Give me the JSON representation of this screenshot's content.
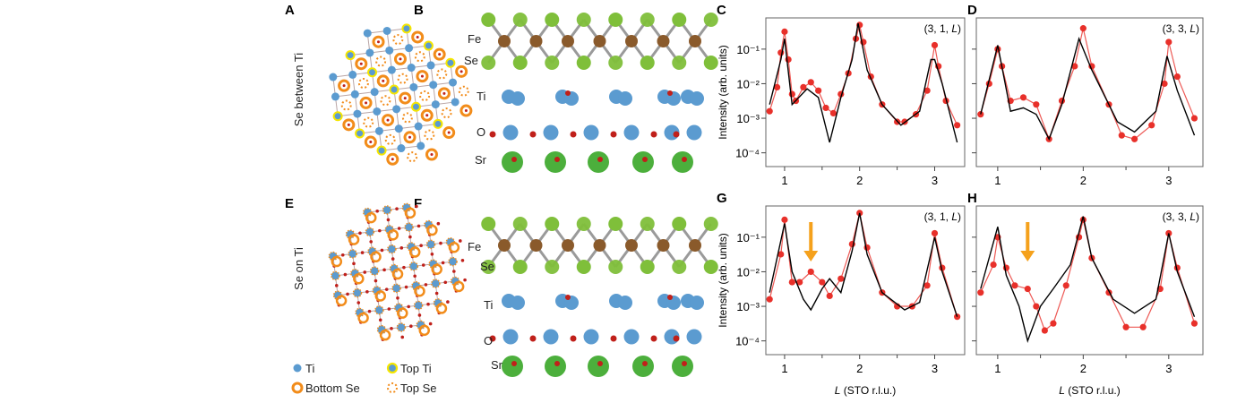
{
  "panels": {
    "A": {
      "letter": "A",
      "side_label": "Se between Ti"
    },
    "B": {
      "letter": "B",
      "atoms": {
        "fe": "Fe",
        "se": "Se",
        "ti": "Ti",
        "o": "O",
        "sr": "Sr"
      }
    },
    "E": {
      "letter": "E",
      "side_label": "Se on Ti"
    },
    "F": {
      "letter": "F",
      "atoms": {
        "fe": "Fe",
        "se": "Se",
        "ti": "Ti",
        "o": "O",
        "sr": "Sr"
      }
    }
  },
  "legend": {
    "items": [
      {
        "label": "Ti",
        "icon": "ti-atom-icon"
      },
      {
        "label": "Top Ti",
        "icon": "top-ti-atom-icon"
      },
      {
        "label": "Bottom Se",
        "icon": "bottom-se-ring-icon"
      },
      {
        "label": "Top Se",
        "icon": "top-se-dotted-ring-icon"
      }
    ]
  },
  "colors": {
    "ti": "#5b9bd0",
    "top_ti_ring": "#f5e600",
    "se_orange": "#f28c1a",
    "fe": "#8a5a2b",
    "se_green": "#7fbf3a",
    "sr": "#4caf3c",
    "o": "#c0201a",
    "data": "#e8302a",
    "fit": "#000000",
    "arrow": "#f5a11c"
  },
  "chart_data": [
    {
      "letter": "C",
      "type": "scatter",
      "hkl_prefix": "(3, 1, ",
      "hkl_var": "L",
      "hkl_suffix": ")",
      "ylabel": "Intensity (arb. units)",
      "xlabel": "",
      "yscale": "log",
      "ylim": [
        4e-05,
        0.8
      ],
      "xlim": [
        0.75,
        3.4
      ],
      "yticks": [
        {
          "v": 0.1,
          "label": "10⁻¹"
        },
        {
          "v": 0.01,
          "label": "10⁻²"
        },
        {
          "v": 0.001,
          "label": "10⁻³"
        },
        {
          "v": 0.0001,
          "label": "10⁻⁴"
        }
      ],
      "xticks": [
        1,
        2,
        3
      ],
      "minor_xticks": [
        1.5,
        2.5
      ],
      "series": [
        {
          "kind": "data",
          "points": [
            [
              0.8,
              0.0016
            ],
            [
              0.9,
              0.0079
            ],
            [
              0.95,
              0.079
            ],
            [
              1.0,
              0.32
            ],
            [
              1.05,
              0.05
            ],
            [
              1.1,
              0.005
            ],
            [
              1.15,
              0.0032
            ],
            [
              1.25,
              0.0079
            ],
            [
              1.35,
              0.011
            ],
            [
              1.45,
              0.0063
            ],
            [
              1.55,
              0.002
            ],
            [
              1.65,
              0.0014
            ],
            [
              1.75,
              0.005
            ],
            [
              1.85,
              0.02
            ],
            [
              1.95,
              0.2
            ],
            [
              2.0,
              0.5
            ],
            [
              2.05,
              0.16
            ],
            [
              2.15,
              0.016
            ],
            [
              2.3,
              0.0025
            ],
            [
              2.5,
              0.00079
            ],
            [
              2.6,
              0.00079
            ],
            [
              2.75,
              0.0013
            ],
            [
              2.9,
              0.0063
            ],
            [
              3.0,
              0.13
            ],
            [
              3.05,
              0.032
            ],
            [
              3.15,
              0.0032
            ],
            [
              3.3,
              0.00063
            ]
          ]
        },
        {
          "kind": "fit",
          "points": [
            [
              0.8,
              0.0025
            ],
            [
              0.95,
              0.05
            ],
            [
              1.0,
              0.2
            ],
            [
              1.1,
              0.0025
            ],
            [
              1.3,
              0.0071
            ],
            [
              1.45,
              0.004
            ],
            [
              1.6,
              0.0002
            ],
            [
              1.75,
              0.004
            ],
            [
              1.9,
              0.05
            ],
            [
              1.98,
              0.56
            ],
            [
              2.1,
              0.025
            ],
            [
              2.3,
              0.0025
            ],
            [
              2.55,
              0.00063
            ],
            [
              2.8,
              0.0016
            ],
            [
              2.95,
              0.05
            ],
            [
              3.0,
              0.05
            ],
            [
              3.1,
              0.01
            ],
            [
              3.3,
              0.0002
            ]
          ]
        }
      ],
      "annotations": []
    },
    {
      "letter": "D",
      "type": "scatter",
      "hkl_prefix": "(3, 3, ",
      "hkl_var": "L",
      "hkl_suffix": ")",
      "ylabel": "",
      "xlabel": "",
      "yscale": "log",
      "ylim": [
        4e-05,
        0.8
      ],
      "xlim": [
        0.75,
        3.4
      ],
      "yticks": [
        {
          "v": 0.1,
          "label": ""
        },
        {
          "v": 0.01,
          "label": ""
        },
        {
          "v": 0.001,
          "label": ""
        },
        {
          "v": 0.0001,
          "label": ""
        }
      ],
      "xticks": [
        1,
        2,
        3
      ],
      "minor_xticks": [
        1.5,
        2.5
      ],
      "series": [
        {
          "kind": "data",
          "points": [
            [
              0.8,
              0.0013
            ],
            [
              0.9,
              0.01
            ],
            [
              1.0,
              0.1
            ],
            [
              1.05,
              0.032
            ],
            [
              1.15,
              0.0032
            ],
            [
              1.3,
              0.004
            ],
            [
              1.45,
              0.0025
            ],
            [
              1.6,
              0.00025
            ],
            [
              1.75,
              0.0032
            ],
            [
              1.9,
              0.032
            ],
            [
              2.0,
              0.4
            ],
            [
              2.1,
              0.032
            ],
            [
              2.3,
              0.0025
            ],
            [
              2.45,
              0.00032
            ],
            [
              2.6,
              0.00025
            ],
            [
              2.8,
              0.00063
            ],
            [
              2.95,
              0.01
            ],
            [
              3.0,
              0.16
            ],
            [
              3.1,
              0.016
            ],
            [
              3.3,
              0.001
            ]
          ]
        },
        {
          "kind": "fit",
          "points": [
            [
              0.8,
              0.0013
            ],
            [
              1.0,
              0.13
            ],
            [
              1.15,
              0.0016
            ],
            [
              1.3,
              0.002
            ],
            [
              1.45,
              0.0013
            ],
            [
              1.6,
              0.00025
            ],
            [
              1.75,
              0.0025
            ],
            [
              1.95,
              0.2
            ],
            [
              2.1,
              0.025
            ],
            [
              2.4,
              0.00079
            ],
            [
              2.6,
              0.0004
            ],
            [
              2.85,
              0.0016
            ],
            [
              2.98,
              0.063
            ],
            [
              3.1,
              0.0063
            ],
            [
              3.3,
              0.00032
            ]
          ]
        }
      ],
      "annotations": []
    },
    {
      "letter": "G",
      "type": "scatter",
      "hkl_prefix": "(3, 1, ",
      "hkl_var": "L",
      "hkl_suffix": ")",
      "ylabel": "Intensity (arb. units)",
      "xlabel_var": "L",
      "xlabel": " (STO r.l.u.)",
      "yscale": "log",
      "ylim": [
        4e-05,
        0.8
      ],
      "xlim": [
        0.75,
        3.4
      ],
      "yticks": [
        {
          "v": 0.1,
          "label": "10⁻¹"
        },
        {
          "v": 0.01,
          "label": "10⁻²"
        },
        {
          "v": 0.001,
          "label": "10⁻³"
        },
        {
          "v": 0.0001,
          "label": "10⁻⁴"
        }
      ],
      "xticks": [
        1,
        2,
        3
      ],
      "minor_xticks": [
        1.5,
        2.5
      ],
      "series": [
        {
          "kind": "data",
          "points": [
            [
              0.8,
              0.0016
            ],
            [
              0.95,
              0.032
            ],
            [
              1.0,
              0.32
            ],
            [
              1.1,
              0.005
            ],
            [
              1.2,
              0.005
            ],
            [
              1.35,
              0.01
            ],
            [
              1.5,
              0.005
            ],
            [
              1.6,
              0.002
            ],
            [
              1.75,
              0.0063
            ],
            [
              1.9,
              0.063
            ],
            [
              2.0,
              0.5
            ],
            [
              2.1,
              0.05
            ],
            [
              2.3,
              0.0025
            ],
            [
              2.5,
              0.001
            ],
            [
              2.7,
              0.001
            ],
            [
              2.9,
              0.004
            ],
            [
              3.0,
              0.13
            ],
            [
              3.1,
              0.013
            ],
            [
              3.3,
              0.0005
            ]
          ]
        },
        {
          "kind": "fit",
          "points": [
            [
              0.8,
              0.0025
            ],
            [
              1.0,
              0.25
            ],
            [
              1.1,
              0.01
            ],
            [
              1.25,
              0.0016
            ],
            [
              1.35,
              0.00079
            ],
            [
              1.5,
              0.0032
            ],
            [
              1.6,
              0.0063
            ],
            [
              1.75,
              0.0025
            ],
            [
              1.9,
              0.04
            ],
            [
              2.0,
              0.5
            ],
            [
              2.1,
              0.032
            ],
            [
              2.3,
              0.0025
            ],
            [
              2.6,
              0.00079
            ],
            [
              2.8,
              0.0013
            ],
            [
              3.0,
              0.1
            ],
            [
              3.1,
              0.01
            ],
            [
              3.3,
              0.0005
            ]
          ]
        }
      ],
      "annotations": [
        {
          "type": "arrow",
          "x": 1.35,
          "pointing": "down"
        }
      ]
    },
    {
      "letter": "H",
      "type": "scatter",
      "hkl_prefix": "(3, 3, ",
      "hkl_var": "L",
      "hkl_suffix": ")",
      "ylabel": "",
      "xlabel_var": "L",
      "xlabel": " (STO r.l.u.)",
      "yscale": "log",
      "ylim": [
        4e-05,
        0.8
      ],
      "xlim": [
        0.75,
        3.4
      ],
      "yticks": [
        {
          "v": 0.1,
          "label": ""
        },
        {
          "v": 0.01,
          "label": ""
        },
        {
          "v": 0.001,
          "label": ""
        },
        {
          "v": 0.0001,
          "label": ""
        }
      ],
      "xticks": [
        1,
        2,
        3
      ],
      "minor_xticks": [
        1.5,
        2.5
      ],
      "series": [
        {
          "kind": "data",
          "points": [
            [
              0.8,
              0.0025
            ],
            [
              0.95,
              0.016
            ],
            [
              1.0,
              0.1
            ],
            [
              1.1,
              0.013
            ],
            [
              1.2,
              0.004
            ],
            [
              1.35,
              0.0032
            ],
            [
              1.45,
              0.001
            ],
            [
              1.55,
              0.0002
            ],
            [
              1.65,
              0.00032
            ],
            [
              1.8,
              0.004
            ],
            [
              1.95,
              0.1
            ],
            [
              2.0,
              0.32
            ],
            [
              2.1,
              0.025
            ],
            [
              2.3,
              0.0025
            ],
            [
              2.5,
              0.00025
            ],
            [
              2.7,
              0.00025
            ],
            [
              2.9,
              0.0032
            ],
            [
              3.0,
              0.13
            ],
            [
              3.1,
              0.013
            ],
            [
              3.3,
              0.00032
            ]
          ]
        },
        {
          "kind": "fit",
          "points": [
            [
              0.8,
              0.0032
            ],
            [
              1.0,
              0.2
            ],
            [
              1.1,
              0.0079
            ],
            [
              1.25,
              0.001
            ],
            [
              1.35,
              0.0001
            ],
            [
              1.5,
              0.001
            ],
            [
              1.65,
              0.0032
            ],
            [
              1.85,
              0.016
            ],
            [
              2.0,
              0.4
            ],
            [
              2.1,
              0.025
            ],
            [
              2.35,
              0.0016
            ],
            [
              2.6,
              0.00063
            ],
            [
              2.85,
              0.0016
            ],
            [
              3.0,
              0.13
            ],
            [
              3.1,
              0.01
            ],
            [
              3.3,
              0.0005
            ]
          ]
        }
      ],
      "annotations": [
        {
          "type": "arrow",
          "x": 1.35,
          "pointing": "down"
        }
      ]
    }
  ]
}
